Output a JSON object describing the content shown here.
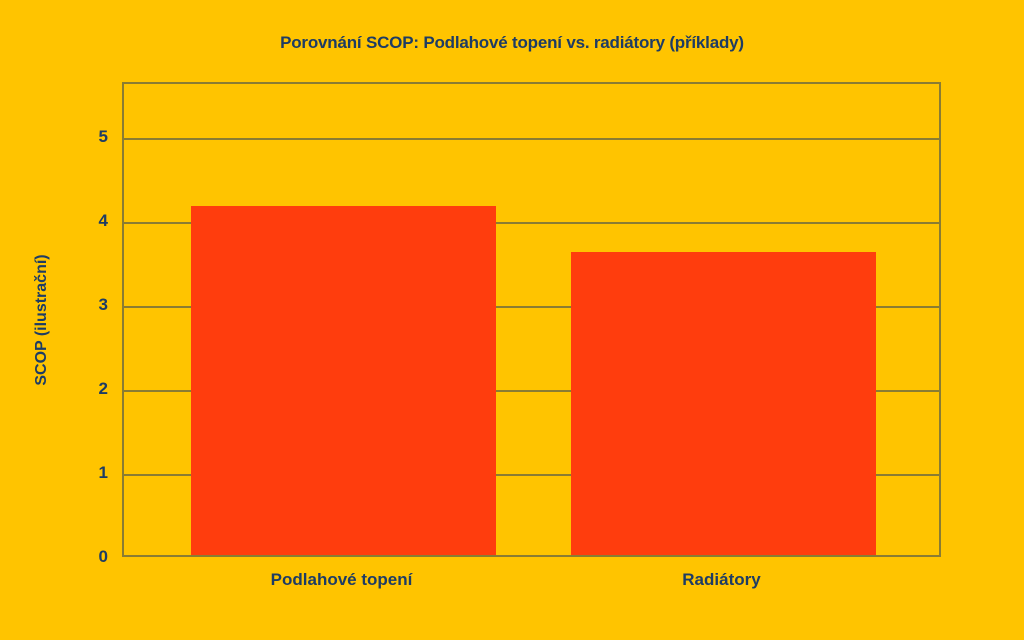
{
  "figure": {
    "background_color": "#ffc400",
    "bar_color": "#ff3d0d",
    "text_color": "#1e3c64",
    "grid_color": "#8a7c33"
  },
  "chart_data": {
    "type": "bar",
    "title": "Porovnání SCOP: Podlahové topení vs. radiátory (příklady)",
    "xlabel": "",
    "ylabel": "SCOP (ilustrační)",
    "categories": [
      "Podlahové topení",
      "Radiátory"
    ],
    "values": [
      4.15,
      3.6
    ],
    "ylim": [
      0,
      5.65
    ],
    "yticks": [
      0,
      1,
      2,
      3,
      4,
      5
    ],
    "grid": true,
    "legend": false
  }
}
